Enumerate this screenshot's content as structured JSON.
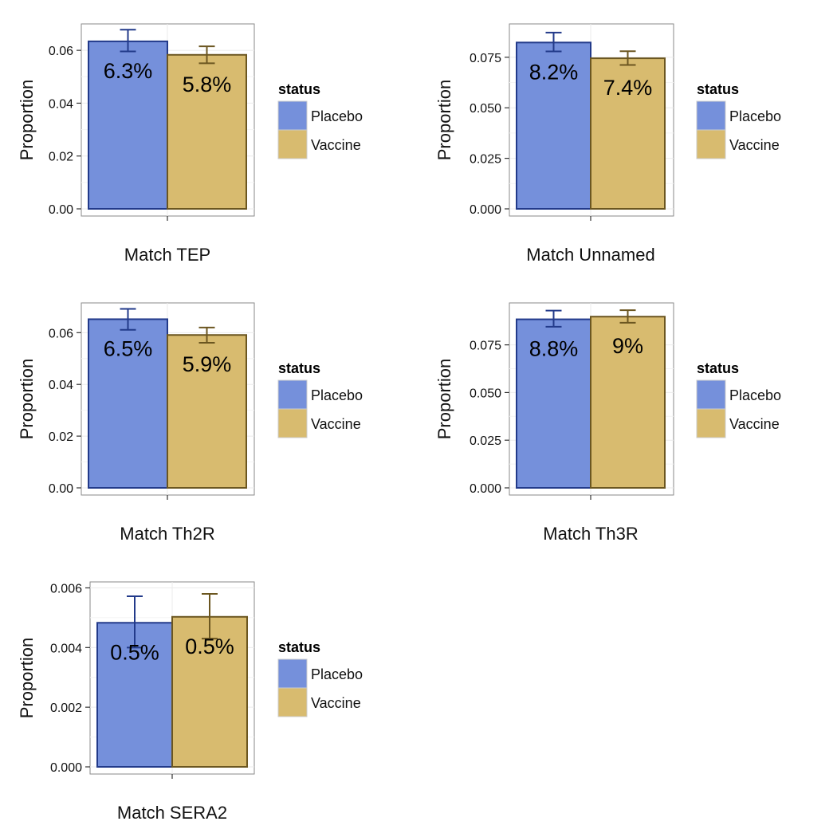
{
  "colors": {
    "placebo_fill": "#7590DB",
    "placebo_stroke": "#223A8A",
    "vaccine_fill": "#D8BB6F",
    "vaccine_stroke": "#6B5620",
    "panel_border": "#8A8A8A",
    "grid": "#EBEBEB"
  },
  "legend": {
    "title": "status",
    "items": [
      "Placebo",
      "Vaccine"
    ]
  },
  "chart_data": [
    {
      "type": "bar",
      "xlabel": "Match TEP",
      "ylabel": "Proportion",
      "ylim": [
        0,
        0.07
      ],
      "yticks": [
        0,
        0.02,
        0.04,
        0.06
      ],
      "ytick_labels": [
        "0.00",
        "0.02",
        "0.04",
        "0.06"
      ],
      "series": [
        {
          "name": "Placebo",
          "value": 0.0634,
          "err_low": 0.0596,
          "err_high": 0.0678,
          "label": "6.3%"
        },
        {
          "name": "Vaccine",
          "value": 0.0583,
          "err_low": 0.0551,
          "err_high": 0.0615,
          "label": "5.8%"
        }
      ]
    },
    {
      "type": "bar",
      "xlabel": "Match Unnamed",
      "ylabel": "Proportion",
      "ylim": [
        0,
        0.0915
      ],
      "yticks": [
        0,
        0.025,
        0.05,
        0.075
      ],
      "ytick_labels": [
        "0.000",
        "0.025",
        "0.050",
        "0.075"
      ],
      "series": [
        {
          "name": "Placebo",
          "value": 0.0823,
          "err_low": 0.0779,
          "err_high": 0.0872,
          "label": "8.2%"
        },
        {
          "name": "Vaccine",
          "value": 0.0745,
          "err_low": 0.0712,
          "err_high": 0.078,
          "label": "7.4%"
        }
      ]
    },
    {
      "type": "bar",
      "xlabel": "Match Th2R",
      "ylabel": "Proportion",
      "ylim": [
        0,
        0.0715
      ],
      "yticks": [
        0,
        0.02,
        0.04,
        0.06
      ],
      "ytick_labels": [
        "0.00",
        "0.02",
        "0.04",
        "0.06"
      ],
      "series": [
        {
          "name": "Placebo",
          "value": 0.0652,
          "err_low": 0.0611,
          "err_high": 0.0692,
          "label": "6.5%"
        },
        {
          "name": "Vaccine",
          "value": 0.0591,
          "err_low": 0.0561,
          "err_high": 0.062,
          "label": "5.9%"
        }
      ]
    },
    {
      "type": "bar",
      "xlabel": "Match Th3R",
      "ylabel": "Proportion",
      "ylim": [
        0,
        0.097
      ],
      "yticks": [
        0,
        0.025,
        0.05,
        0.075
      ],
      "ytick_labels": [
        "0.000",
        "0.025",
        "0.050",
        "0.075"
      ],
      "series": [
        {
          "name": "Placebo",
          "value": 0.0884,
          "err_low": 0.0845,
          "err_high": 0.093,
          "label": "8.8%"
        },
        {
          "name": "Vaccine",
          "value": 0.0898,
          "err_low": 0.0866,
          "err_high": 0.0932,
          "label": "9%"
        }
      ]
    },
    {
      "type": "bar",
      "xlabel": "Match SERA2",
      "ylabel": "Proportion",
      "ylim": [
        0,
        0.0062
      ],
      "yticks": [
        0,
        0.002,
        0.004,
        0.006
      ],
      "ytick_labels": [
        "0.000",
        "0.002",
        "0.004",
        "0.006"
      ],
      "series": [
        {
          "name": "Placebo",
          "value": 0.00483,
          "err_low": 0.004,
          "err_high": 0.00572,
          "label": "0.5%"
        },
        {
          "name": "Vaccine",
          "value": 0.00503,
          "err_low": 0.0043,
          "err_high": 0.0058,
          "label": "0.5%"
        }
      ]
    }
  ]
}
